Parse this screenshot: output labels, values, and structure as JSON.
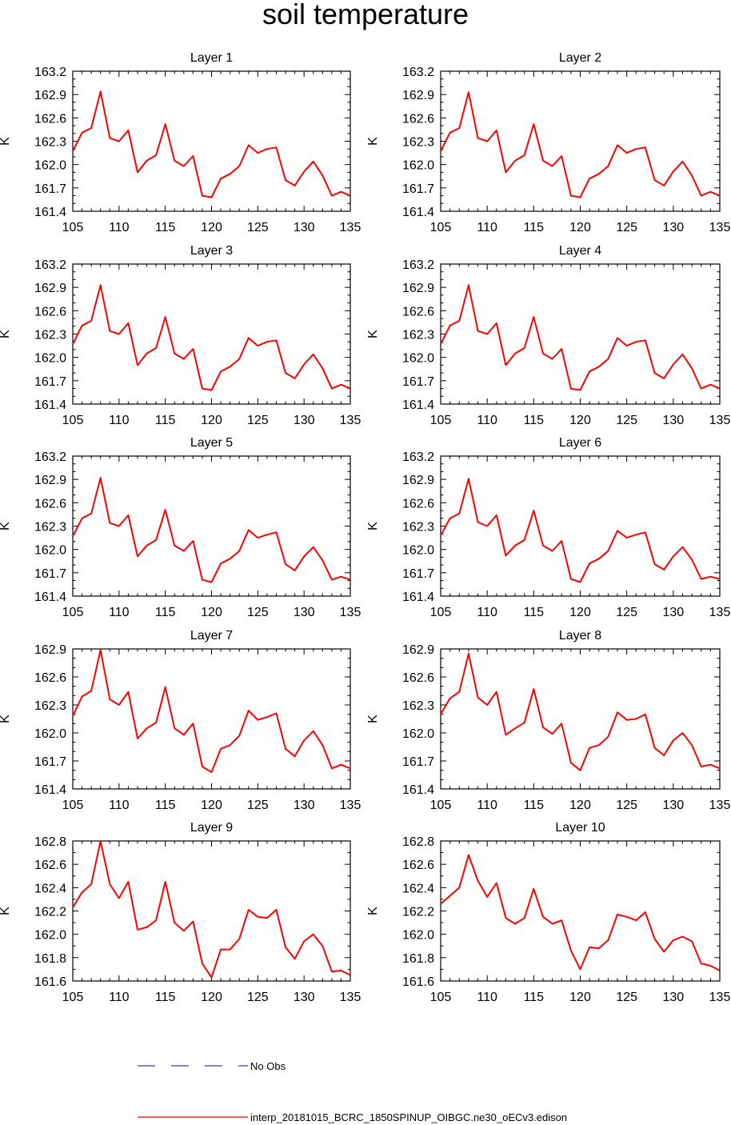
{
  "title": "soil temperature",
  "legend": [
    {
      "label": "No Obs",
      "color": "#3333ff",
      "dash": "dashed"
    },
    {
      "label": "interp_20181015_BCRC_1850SPINUP_OIBGC.ne30_oECv3.edison",
      "color": "#ff0000",
      "dash": "solid"
    }
  ],
  "chart_data": [
    {
      "type": "line",
      "title": "Layer 1",
      "ylabel": "K",
      "xlim": [
        105,
        135
      ],
      "ylim": [
        161.4,
        163.2
      ],
      "xticks": [
        105,
        110,
        115,
        120,
        125,
        130,
        135
      ],
      "yticks": [
        "161.4",
        "161.7",
        "162.0",
        "162.3",
        "162.6",
        "162.9",
        "163.2"
      ],
      "series": [
        {
          "color": "#ff0000",
          "x": [
            105,
            106,
            107,
            108,
            109,
            110,
            111,
            112,
            113,
            114,
            115,
            116,
            117,
            118,
            119,
            120,
            121,
            122,
            123,
            124,
            125,
            126,
            127,
            128,
            129,
            130,
            131,
            132,
            133,
            134,
            135
          ],
          "values": [
            162.17,
            162.41,
            162.47,
            162.94,
            162.34,
            162.3,
            162.44,
            161.9,
            162.05,
            162.12,
            162.52,
            162.05,
            161.98,
            162.11,
            161.6,
            161.58,
            161.82,
            161.88,
            161.98,
            162.25,
            162.15,
            162.2,
            162.22,
            161.8,
            161.73,
            161.91,
            162.04,
            161.86,
            161.6,
            161.65,
            161.6
          ]
        }
      ]
    },
    {
      "type": "line",
      "title": "Layer 2",
      "ylabel": "K",
      "xlim": [
        105,
        135
      ],
      "ylim": [
        161.4,
        163.2
      ],
      "xticks": [
        105,
        110,
        115,
        120,
        125,
        130,
        135
      ],
      "yticks": [
        "161.4",
        "161.7",
        "162.0",
        "162.3",
        "162.6",
        "162.9",
        "163.2"
      ],
      "series": [
        {
          "color": "#ff0000",
          "x": [
            105,
            106,
            107,
            108,
            109,
            110,
            111,
            112,
            113,
            114,
            115,
            116,
            117,
            118,
            119,
            120,
            121,
            122,
            123,
            124,
            125,
            126,
            127,
            128,
            129,
            130,
            131,
            132,
            133,
            134,
            135
          ],
          "values": [
            162.17,
            162.41,
            162.47,
            162.93,
            162.34,
            162.3,
            162.44,
            161.9,
            162.05,
            162.12,
            162.52,
            162.05,
            161.98,
            162.11,
            161.6,
            161.58,
            161.82,
            161.88,
            161.98,
            162.25,
            162.15,
            162.2,
            162.22,
            161.8,
            161.73,
            161.91,
            162.04,
            161.86,
            161.6,
            161.65,
            161.6
          ]
        }
      ]
    },
    {
      "type": "line",
      "title": "Layer 3",
      "ylabel": "K",
      "xlim": [
        105,
        135
      ],
      "ylim": [
        161.4,
        163.2
      ],
      "xticks": [
        105,
        110,
        115,
        120,
        125,
        130,
        135
      ],
      "yticks": [
        "161.4",
        "161.7",
        "162.0",
        "162.3",
        "162.6",
        "162.9",
        "163.2"
      ],
      "series": [
        {
          "color": "#ff0000",
          "x": [
            105,
            106,
            107,
            108,
            109,
            110,
            111,
            112,
            113,
            114,
            115,
            116,
            117,
            118,
            119,
            120,
            121,
            122,
            123,
            124,
            125,
            126,
            127,
            128,
            129,
            130,
            131,
            132,
            133,
            134,
            135
          ],
          "values": [
            162.17,
            162.41,
            162.47,
            162.93,
            162.34,
            162.3,
            162.44,
            161.9,
            162.05,
            162.12,
            162.52,
            162.05,
            161.98,
            162.11,
            161.6,
            161.58,
            161.82,
            161.88,
            161.98,
            162.25,
            162.15,
            162.2,
            162.22,
            161.8,
            161.73,
            161.91,
            162.04,
            161.86,
            161.6,
            161.65,
            161.6
          ]
        }
      ]
    },
    {
      "type": "line",
      "title": "Layer 4",
      "ylabel": "K",
      "xlim": [
        105,
        135
      ],
      "ylim": [
        161.4,
        163.2
      ],
      "xticks": [
        105,
        110,
        115,
        120,
        125,
        130,
        135
      ],
      "yticks": [
        "161.4",
        "161.7",
        "162.0",
        "162.3",
        "162.6",
        "162.9",
        "163.2"
      ],
      "series": [
        {
          "color": "#ff0000",
          "x": [
            105,
            106,
            107,
            108,
            109,
            110,
            111,
            112,
            113,
            114,
            115,
            116,
            117,
            118,
            119,
            120,
            121,
            122,
            123,
            124,
            125,
            126,
            127,
            128,
            129,
            130,
            131,
            132,
            133,
            134,
            135
          ],
          "values": [
            162.17,
            162.41,
            162.47,
            162.93,
            162.34,
            162.3,
            162.44,
            161.9,
            162.05,
            162.12,
            162.52,
            162.05,
            161.98,
            162.11,
            161.6,
            161.58,
            161.82,
            161.88,
            161.98,
            162.25,
            162.15,
            162.2,
            162.22,
            161.8,
            161.73,
            161.91,
            162.04,
            161.86,
            161.6,
            161.65,
            161.6
          ]
        }
      ]
    },
    {
      "type": "line",
      "title": "Layer 5",
      "ylabel": "K",
      "xlim": [
        105,
        135
      ],
      "ylim": [
        161.4,
        163.2
      ],
      "xticks": [
        105,
        110,
        115,
        120,
        125,
        130,
        135
      ],
      "yticks": [
        "161.4",
        "161.7",
        "162.0",
        "162.3",
        "162.6",
        "162.9",
        "163.2"
      ],
      "series": [
        {
          "color": "#ff0000",
          "x": [
            105,
            106,
            107,
            108,
            109,
            110,
            111,
            112,
            113,
            114,
            115,
            116,
            117,
            118,
            119,
            120,
            121,
            122,
            123,
            124,
            125,
            126,
            127,
            128,
            129,
            130,
            131,
            132,
            133,
            134,
            135
          ],
          "values": [
            162.17,
            162.4,
            162.46,
            162.92,
            162.34,
            162.3,
            162.44,
            161.91,
            162.05,
            162.12,
            162.51,
            162.05,
            161.98,
            162.11,
            161.61,
            161.58,
            161.82,
            161.88,
            161.98,
            162.25,
            162.15,
            162.19,
            162.22,
            161.81,
            161.73,
            161.91,
            162.03,
            161.86,
            161.61,
            161.65,
            161.61
          ]
        }
      ]
    },
    {
      "type": "line",
      "title": "Layer 6",
      "ylabel": "K",
      "xlim": [
        105,
        135
      ],
      "ylim": [
        161.4,
        163.2
      ],
      "xticks": [
        105,
        110,
        115,
        120,
        125,
        130,
        135
      ],
      "yticks": [
        "161.4",
        "161.7",
        "162.0",
        "162.3",
        "162.6",
        "162.9",
        "163.2"
      ],
      "series": [
        {
          "color": "#ff0000",
          "x": [
            105,
            106,
            107,
            108,
            109,
            110,
            111,
            112,
            113,
            114,
            115,
            116,
            117,
            118,
            119,
            120,
            121,
            122,
            123,
            124,
            125,
            126,
            127,
            128,
            129,
            130,
            131,
            132,
            133,
            134,
            135
          ],
          "values": [
            162.18,
            162.4,
            162.46,
            162.91,
            162.35,
            162.3,
            162.44,
            161.92,
            162.05,
            162.12,
            162.5,
            162.05,
            161.98,
            162.11,
            161.62,
            161.58,
            161.82,
            161.88,
            161.98,
            162.24,
            162.15,
            162.19,
            162.22,
            161.81,
            161.74,
            161.91,
            162.03,
            161.87,
            161.62,
            161.65,
            161.62
          ]
        }
      ]
    },
    {
      "type": "line",
      "title": "Layer 7",
      "ylabel": "K",
      "xlim": [
        105,
        135
      ],
      "ylim": [
        161.4,
        162.9
      ],
      "xticks": [
        105,
        110,
        115,
        120,
        125,
        130,
        135
      ],
      "yticks": [
        "161.4",
        "161.7",
        "162.0",
        "162.3",
        "162.6",
        "162.9"
      ],
      "series": [
        {
          "color": "#ff0000",
          "x": [
            105,
            106,
            107,
            108,
            109,
            110,
            111,
            112,
            113,
            114,
            115,
            116,
            117,
            118,
            119,
            120,
            121,
            122,
            123,
            124,
            125,
            126,
            127,
            128,
            129,
            130,
            131,
            132,
            133,
            134,
            135
          ],
          "values": [
            162.18,
            162.39,
            162.45,
            162.89,
            162.36,
            162.3,
            162.44,
            161.94,
            162.05,
            162.11,
            162.49,
            162.05,
            161.98,
            162.1,
            161.64,
            161.58,
            161.83,
            161.87,
            161.97,
            162.24,
            162.14,
            162.17,
            162.21,
            161.83,
            161.75,
            161.92,
            162.02,
            161.87,
            161.62,
            161.66,
            161.62
          ]
        }
      ]
    },
    {
      "type": "line",
      "title": "Layer 8",
      "ylabel": "K",
      "xlim": [
        105,
        135
      ],
      "ylim": [
        161.4,
        162.9
      ],
      "xticks": [
        105,
        110,
        115,
        120,
        125,
        130,
        135
      ],
      "yticks": [
        "161.4",
        "161.7",
        "162.0",
        "162.3",
        "162.6",
        "162.9"
      ],
      "series": [
        {
          "color": "#ff0000",
          "x": [
            105,
            106,
            107,
            108,
            109,
            110,
            111,
            112,
            113,
            114,
            115,
            116,
            117,
            118,
            119,
            120,
            121,
            122,
            123,
            124,
            125,
            126,
            127,
            128,
            129,
            130,
            131,
            132,
            133,
            134,
            135
          ],
          "values": [
            162.2,
            162.37,
            162.44,
            162.85,
            162.38,
            162.3,
            162.44,
            161.98,
            162.05,
            162.11,
            162.47,
            162.06,
            161.99,
            162.1,
            161.68,
            161.6,
            161.84,
            161.87,
            161.96,
            162.22,
            162.14,
            162.15,
            162.2,
            161.84,
            161.76,
            161.92,
            162.0,
            161.87,
            161.64,
            161.66,
            161.62
          ]
        }
      ]
    },
    {
      "type": "line",
      "title": "Layer 9",
      "ylabel": "K",
      "xlim": [
        105,
        135
      ],
      "ylim": [
        161.6,
        162.8
      ],
      "xticks": [
        105,
        110,
        115,
        120,
        125,
        130,
        135
      ],
      "yticks": [
        "161.6",
        "161.8",
        "162.0",
        "162.2",
        "162.4",
        "162.6",
        "162.8"
      ],
      "series": [
        {
          "color": "#ff0000",
          "x": [
            105,
            106,
            107,
            108,
            109,
            110,
            111,
            112,
            113,
            114,
            115,
            116,
            117,
            118,
            119,
            120,
            121,
            122,
            123,
            124,
            125,
            126,
            127,
            128,
            129,
            130,
            131,
            132,
            133,
            134,
            135
          ],
          "values": [
            162.23,
            162.36,
            162.43,
            162.8,
            162.43,
            162.31,
            162.45,
            162.04,
            162.06,
            162.12,
            162.45,
            162.1,
            162.03,
            162.11,
            161.75,
            161.63,
            161.87,
            161.87,
            161.96,
            162.21,
            162.15,
            162.14,
            162.21,
            161.89,
            161.79,
            161.94,
            162.0,
            161.9,
            161.68,
            161.69,
            161.65
          ]
        }
      ]
    },
    {
      "type": "line",
      "title": "Layer 10",
      "ylabel": "K",
      "xlim": [
        105,
        135
      ],
      "ylim": [
        161.6,
        162.8
      ],
      "xticks": [
        105,
        110,
        115,
        120,
        125,
        130,
        135
      ],
      "yticks": [
        "161.6",
        "161.8",
        "162.0",
        "162.2",
        "162.4",
        "162.6",
        "162.8"
      ],
      "series": [
        {
          "color": "#ff0000",
          "x": [
            105,
            106,
            107,
            108,
            109,
            110,
            111,
            112,
            113,
            114,
            115,
            116,
            117,
            118,
            119,
            120,
            121,
            122,
            123,
            124,
            125,
            126,
            127,
            128,
            129,
            130,
            131,
            132,
            133,
            134,
            135
          ],
          "values": [
            162.26,
            162.33,
            162.4,
            162.68,
            162.46,
            162.32,
            162.44,
            162.14,
            162.09,
            162.14,
            162.39,
            162.15,
            162.09,
            162.12,
            161.86,
            161.7,
            161.89,
            161.88,
            161.95,
            162.17,
            162.15,
            162.12,
            162.19,
            161.96,
            161.85,
            161.95,
            161.98,
            161.94,
            161.75,
            161.73,
            161.69
          ]
        }
      ]
    }
  ]
}
